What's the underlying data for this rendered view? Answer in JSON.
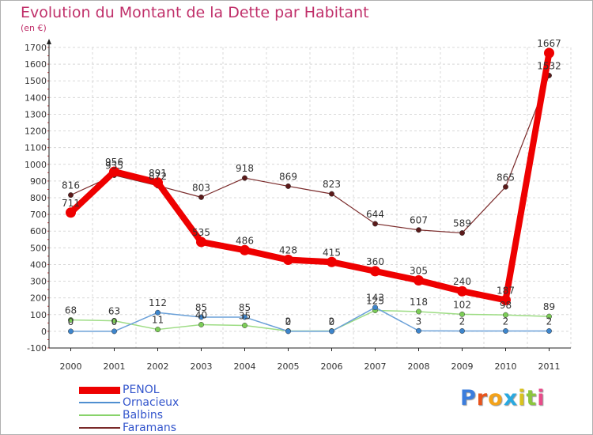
{
  "title": "Evolution du Montant de la Dette par Habitant",
  "subtitle": "(en €)",
  "logo": {
    "text": "Proxiti",
    "letter_colors": [
      "#3b7ddd",
      "#e8541c",
      "#f3a21a",
      "#29a9e0",
      "#d9c21e",
      "#8cc63e",
      "#e84b8a"
    ]
  },
  "chart_data": {
    "type": "line",
    "title": "Evolution du Montant de la Dette par Habitant",
    "subtitle": "(en €)",
    "x": [
      "2000",
      "2001",
      "2002",
      "2003",
      "2004",
      "2005",
      "2006",
      "2007",
      "2008",
      "2009",
      "2010",
      "2011"
    ],
    "ylim": [
      -100,
      1700
    ],
    "yticks": [
      -100,
      0,
      100,
      200,
      300,
      400,
      500,
      600,
      700,
      800,
      900,
      1000,
      1100,
      1200,
      1300,
      1400,
      1500,
      1600,
      1700
    ],
    "grid": true,
    "legend_position": "bottom-left",
    "series": [
      {
        "name": "PENOL",
        "color": "#ee0000",
        "values": [
          711,
          956,
          891,
          535,
          486,
          428,
          415,
          360,
          305,
          240,
          187,
          1667
        ]
      },
      {
        "name": "Ornacieux",
        "color": "#4f8fd0",
        "values": [
          0,
          0,
          112,
          85,
          85,
          0,
          0,
          143,
          3,
          2,
          2,
          2
        ]
      },
      {
        "name": "Balbins",
        "color": "#88d36a",
        "values": [
          68,
          63,
          11,
          40,
          35,
          2,
          2,
          125,
          118,
          102,
          98,
          89
        ]
      },
      {
        "name": "Faramans",
        "color": "#7a2a2a",
        "values": [
          816,
          935,
          872,
          803,
          918,
          869,
          823,
          644,
          607,
          589,
          865,
          1532
        ]
      }
    ],
    "data_labels": [
      {
        "series": "PENOL",
        "values": [
          "711",
          "956",
          "891",
          "535",
          "486",
          "428",
          "415",
          "360",
          "305",
          "240",
          "187",
          "1667"
        ]
      },
      {
        "series": "Faramans",
        "values": [
          "816",
          "935",
          "872",
          "803",
          "918",
          "869",
          "823",
          "644",
          "607",
          "589",
          "865",
          "1532"
        ]
      },
      {
        "series": "Balbins",
        "values": [
          "68",
          "63",
          "11",
          "40",
          "35",
          "2",
          "2",
          "125",
          "118",
          "102",
          "98",
          "89"
        ]
      },
      {
        "series": "Ornacieux",
        "values": [
          "0",
          "0",
          "112",
          "85",
          "85",
          "0",
          "0",
          "143",
          "3",
          "2",
          "2",
          "2"
        ]
      }
    ]
  }
}
